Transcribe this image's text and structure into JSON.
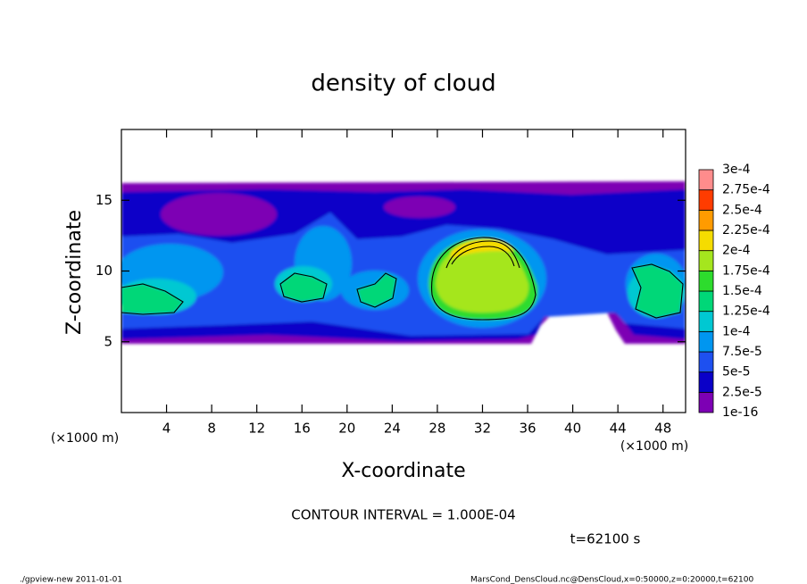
{
  "chart_data": {
    "type": "contour",
    "title": "density of cloud",
    "xlabel": "X-coordinate",
    "ylabel": "Z-coordinate",
    "xunit": "(×1000 m)",
    "yunit": "(×1000 m)",
    "xlim": [
      0,
      50
    ],
    "ylim": [
      0,
      20
    ],
    "xticks": [
      4,
      8,
      12,
      16,
      20,
      24,
      28,
      32,
      36,
      40,
      44,
      48
    ],
    "yticks": [
      5,
      10,
      15
    ],
    "colorbar": {
      "ticks": [
        {
          "value": 1e-16,
          "label": "1e-16"
        },
        {
          "value": 2.5e-05,
          "label": "2.5e-5"
        },
        {
          "value": 5e-05,
          "label": "5e-5"
        },
        {
          "value": 7.5e-05,
          "label": "7.5e-5"
        },
        {
          "value": 0.0001,
          "label": "1e-4"
        },
        {
          "value": 0.000125,
          "label": "1.25e-4"
        },
        {
          "value": 0.00015,
          "label": "1.5e-4"
        },
        {
          "value": 0.000175,
          "label": "1.75e-4"
        },
        {
          "value": 0.0002,
          "label": "2e-4"
        },
        {
          "value": 0.000225,
          "label": "2.25e-4"
        },
        {
          "value": 0.00025,
          "label": "2.5e-4"
        },
        {
          "value": 0.000275,
          "label": "2.75e-4"
        },
        {
          "value": 0.0003,
          "label": "3e-4"
        }
      ],
      "colors": [
        "#7d00b4",
        "#0a00c8",
        "#1e50f0",
        "#0096f0",
        "#00c8d2",
        "#00d778",
        "#2ddc2d",
        "#a5e61e",
        "#f5dc00",
        "#ff9b00",
        "#ff3c00",
        "#ff8c8c"
      ]
    },
    "contour_interval": "CONTOUR INTERVAL = 1.000E-04",
    "time_label": "t=62100 s",
    "footer_left": "./gpview-new  2011-01-01",
    "footer_right": "MarsCond_DensCloud.nc@DensCloud,x=0:50000,z=0:20000,t=62100"
  }
}
